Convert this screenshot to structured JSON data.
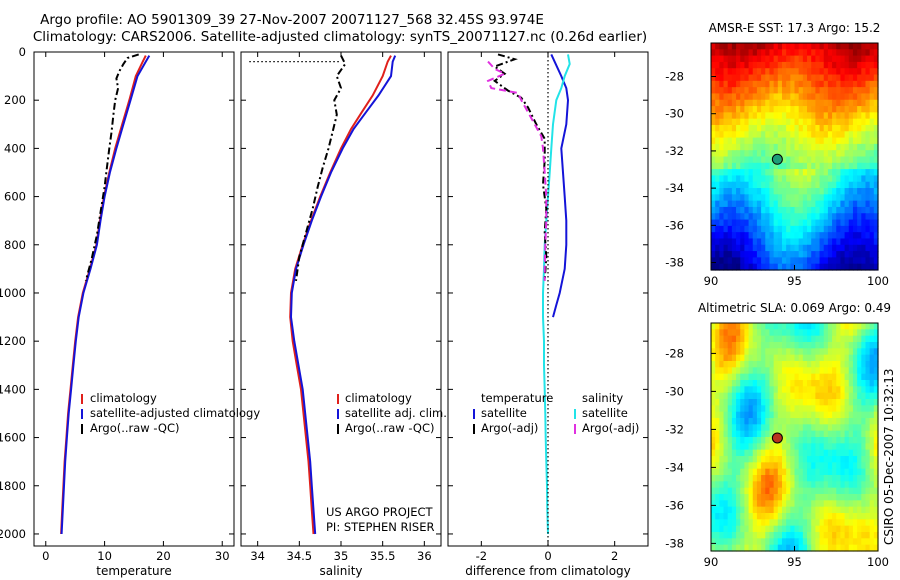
{
  "header": {
    "line1": "Argo profile: AO 5901309_39 27-Nov-2007 20071127_568 32.45S 93.974E",
    "line2": "Climatology: CARS2006. Satellite-adjusted climatology: synTS_20071127.nc (0.26d earlier)"
  },
  "footer": {
    "project": "US ARGO PROJECT",
    "pi": "PI: STEPHEN RISER",
    "stamp": "CSIRO 05-Dec-2007 10:32:13"
  },
  "colors": {
    "climatology": "#e0201b",
    "satellite": "#1414d8",
    "argo": "#000000",
    "cyan": "#22e3e8",
    "magenta": "#e030e0"
  },
  "chart_data": [
    {
      "id": "temp",
      "type": "line",
      "xlabel": "temperature",
      "ylabel": "",
      "xlim": [
        -2,
        32
      ],
      "ylim": [
        2050,
        0
      ],
      "xticks": [
        "0",
        "10",
        "20",
        "30"
      ],
      "xtick_values": [
        0,
        10,
        20,
        30
      ],
      "yticks": [
        "0",
        "200",
        "400",
        "600",
        "800",
        "1000",
        "1200",
        "1400",
        "1600",
        "1800",
        "2000"
      ],
      "ytick_values": [
        0,
        200,
        400,
        600,
        800,
        1000,
        1200,
        1400,
        1600,
        1800,
        2000
      ],
      "legend": [
        "climatology",
        "satellite-adjusted climatology",
        "Argo(..raw -QC)"
      ],
      "series": [
        {
          "name": "climatology",
          "color_key": "climatology",
          "style": "solid",
          "points": [
            [
              17.0,
              15
            ],
            [
              16.5,
              40
            ],
            [
              15.3,
              100
            ],
            [
              14.2,
              200
            ],
            [
              13.0,
              300
            ],
            [
              11.8,
              400
            ],
            [
              10.8,
              500
            ],
            [
              9.9,
              600
            ],
            [
              9.2,
              700
            ],
            [
              8.6,
              800
            ],
            [
              7.5,
              900
            ],
            [
              6.3,
              1000
            ],
            [
              5.5,
              1100
            ],
            [
              5.0,
              1200
            ],
            [
              4.6,
              1300
            ],
            [
              4.2,
              1400
            ],
            [
              3.8,
              1500
            ],
            [
              3.5,
              1600
            ],
            [
              3.2,
              1700
            ],
            [
              3.0,
              1800
            ],
            [
              2.8,
              1900
            ],
            [
              2.6,
              2000
            ]
          ]
        },
        {
          "name": "satellite",
          "color_key": "satellite",
          "style": "solid",
          "points": [
            [
              17.6,
              15
            ],
            [
              17.0,
              40
            ],
            [
              15.6,
              100
            ],
            [
              14.4,
              200
            ],
            [
              13.2,
              300
            ],
            [
              12.0,
              400
            ],
            [
              10.9,
              500
            ],
            [
              10.0,
              600
            ],
            [
              9.3,
              700
            ],
            [
              8.7,
              800
            ],
            [
              7.6,
              900
            ],
            [
              6.4,
              1000
            ],
            [
              5.6,
              1100
            ],
            [
              5.1,
              1200
            ],
            [
              4.7,
              1300
            ],
            [
              4.3,
              1400
            ],
            [
              3.9,
              1500
            ],
            [
              3.6,
              1600
            ],
            [
              3.3,
              1700
            ],
            [
              3.1,
              1800
            ],
            [
              2.9,
              1900
            ],
            [
              2.7,
              2000
            ]
          ]
        },
        {
          "name": "argo",
          "color_key": "argo",
          "style": "dashdot",
          "points": [
            [
              15.8,
              10
            ],
            [
              13.9,
              25
            ],
            [
              13.2,
              50
            ],
            [
              12.5,
              80
            ],
            [
              12.0,
              110
            ],
            [
              12.3,
              150
            ],
            [
              11.8,
              200
            ],
            [
              11.5,
              260
            ],
            [
              11.2,
              330
            ],
            [
              10.8,
              400
            ],
            [
              10.4,
              480
            ],
            [
              10.0,
              560
            ],
            [
              9.4,
              650
            ],
            [
              8.7,
              760
            ],
            [
              7.8,
              860
            ],
            [
              6.8,
              950
            ]
          ]
        }
      ]
    },
    {
      "id": "sal",
      "type": "line",
      "xlabel": "salinity",
      "ylabel": "",
      "xlim": [
        33.8,
        36.2
      ],
      "ylim": [
        2050,
        0
      ],
      "xticks": [
        "34",
        "34.5",
        "35",
        "35.5",
        "36"
      ],
      "xtick_values": [
        34,
        34.5,
        35,
        35.5,
        36
      ],
      "legend": [
        "climatology",
        "satellite adj. clim.",
        "Argo(..raw -QC)"
      ],
      "series": [
        {
          "name": "climatology",
          "color_key": "climatology",
          "style": "solid",
          "points": [
            [
              35.6,
              15
            ],
            [
              35.56,
              40
            ],
            [
              35.5,
              100
            ],
            [
              35.38,
              180
            ],
            [
              35.25,
              250
            ],
            [
              35.12,
              320
            ],
            [
              35.0,
              400
            ],
            [
              34.87,
              500
            ],
            [
              34.75,
              600
            ],
            [
              34.64,
              700
            ],
            [
              34.54,
              800
            ],
            [
              34.45,
              900
            ],
            [
              34.4,
              1000
            ],
            [
              34.39,
              1100
            ],
            [
              34.42,
              1200
            ],
            [
              34.47,
              1300
            ],
            [
              34.52,
              1400
            ],
            [
              34.55,
              1500
            ],
            [
              34.58,
              1600
            ],
            [
              34.61,
              1700
            ],
            [
              34.63,
              1800
            ],
            [
              34.65,
              1900
            ],
            [
              34.67,
              2000
            ]
          ]
        },
        {
          "name": "satellite",
          "color_key": "satellite",
          "style": "solid",
          "points": [
            [
              35.65,
              15
            ],
            [
              35.62,
              40
            ],
            [
              35.6,
              100
            ],
            [
              35.45,
              180
            ],
            [
              35.3,
              250
            ],
            [
              35.15,
              320
            ],
            [
              35.02,
              400
            ],
            [
              34.88,
              500
            ],
            [
              34.76,
              600
            ],
            [
              34.65,
              700
            ],
            [
              34.55,
              800
            ],
            [
              34.46,
              900
            ],
            [
              34.41,
              1000
            ],
            [
              34.4,
              1100
            ],
            [
              34.44,
              1200
            ],
            [
              34.49,
              1300
            ],
            [
              34.54,
              1400
            ],
            [
              34.57,
              1500
            ],
            [
              34.6,
              1600
            ],
            [
              34.63,
              1700
            ],
            [
              34.65,
              1800
            ],
            [
              34.67,
              1900
            ],
            [
              34.69,
              2000
            ]
          ]
        },
        {
          "name": "argo",
          "color_key": "argo",
          "style": "dashdot",
          "points": [
            [
              35.0,
              15
            ],
            [
              35.05,
              50
            ],
            [
              34.95,
              100
            ],
            [
              35.0,
              150
            ],
            [
              34.92,
              200
            ],
            [
              34.95,
              260
            ],
            [
              34.9,
              330
            ],
            [
              34.85,
              400
            ],
            [
              34.78,
              480
            ],
            [
              34.72,
              560
            ],
            [
              34.66,
              650
            ],
            [
              34.58,
              750
            ],
            [
              34.5,
              850
            ],
            [
              34.46,
              950
            ]
          ]
        },
        {
          "name": "argo-surface",
          "color_key": "argo",
          "style": "dotted",
          "points": [
            [
              33.9,
              40
            ],
            [
              35.0,
              40
            ]
          ]
        }
      ]
    },
    {
      "id": "diff",
      "type": "line",
      "xlabel": "difference from climatology",
      "ylabel": "",
      "xlim": [
        -3,
        3
      ],
      "ylim": [
        2050,
        0
      ],
      "xticks": [
        "-2",
        "0",
        "2"
      ],
      "xtick_values": [
        -2,
        0,
        2
      ],
      "legend_left_title": "temperature",
      "legend_right_title": "salinity",
      "legend_left": [
        "satellite",
        "Argo(-adj)"
      ],
      "legend_right": [
        "satellite",
        "Argo(-adj)"
      ],
      "series": [
        {
          "name": "temp-satellite",
          "color_key": "satellite",
          "style": "solid",
          "points": [
            [
              0.1,
              10
            ],
            [
              0.4,
              100
            ],
            [
              0.55,
              150
            ],
            [
              0.6,
              200
            ],
            [
              0.55,
              300
            ],
            [
              0.4,
              400
            ],
            [
              0.45,
              500
            ],
            [
              0.5,
              600
            ],
            [
              0.55,
              700
            ],
            [
              0.55,
              800
            ],
            [
              0.5,
              900
            ],
            [
              0.35,
              1000
            ],
            [
              0.25,
              1050
            ],
            [
              0.15,
              1100
            ]
          ]
        },
        {
          "name": "sal-satellite",
          "color_key": "cyan",
          "style": "solid",
          "points": [
            [
              0.6,
              10
            ],
            [
              0.65,
              50
            ],
            [
              0.5,
              100
            ],
            [
              0.4,
              150
            ],
            [
              0.25,
              200
            ],
            [
              0.15,
              300
            ],
            [
              0.1,
              400
            ],
            [
              0.05,
              500
            ],
            [
              0.0,
              600
            ],
            [
              -0.05,
              700
            ],
            [
              -0.1,
              800
            ],
            [
              -0.12,
              900
            ],
            [
              -0.15,
              1000
            ],
            [
              -0.15,
              1100
            ],
            [
              -0.12,
              1200
            ],
            [
              -0.12,
              1300
            ],
            [
              -0.1,
              1400
            ],
            [
              -0.08,
              1500
            ],
            [
              -0.07,
              1600
            ],
            [
              -0.05,
              1700
            ],
            [
              -0.03,
              1800
            ],
            [
              -0.02,
              1900
            ],
            [
              0.0,
              2000
            ]
          ]
        },
        {
          "name": "temp-argo",
          "color_key": "argo",
          "style": "dashdot",
          "points": [
            [
              -1.5,
              10
            ],
            [
              -1.0,
              30
            ],
            [
              -1.6,
              60
            ],
            [
              -1.3,
              90
            ],
            [
              -1.6,
              120
            ],
            [
              -1.2,
              160
            ],
            [
              -0.8,
              190
            ],
            [
              -0.6,
              230
            ],
            [
              -0.35,
              300
            ],
            [
              -0.1,
              360
            ],
            [
              -0.1,
              450
            ],
            [
              -0.15,
              550
            ],
            [
              -0.05,
              650
            ],
            [
              -0.1,
              750
            ],
            [
              -0.05,
              850
            ],
            [
              -0.1,
              950
            ]
          ]
        },
        {
          "name": "sal-argo",
          "color_key": "magenta",
          "style": "dashed",
          "points": [
            [
              -1.8,
              40
            ],
            [
              -1.6,
              70
            ],
            [
              -1.3,
              90
            ],
            [
              -1.8,
              120
            ],
            [
              -1.7,
              150
            ],
            [
              -0.9,
              170
            ],
            [
              -0.8,
              200
            ],
            [
              -0.6,
              250
            ],
            [
              -0.4,
              300
            ],
            [
              -0.2,
              350
            ],
            [
              -0.15,
              400
            ],
            [
              -0.1,
              500
            ],
            [
              -0.05,
              600
            ],
            [
              -0.05,
              700
            ],
            [
              -0.08,
              800
            ],
            [
              -0.1,
              900
            ],
            [
              -0.1,
              950
            ]
          ]
        },
        {
          "name": "zero-line",
          "color_key": "argo",
          "style": "dotted",
          "points": [
            [
              0,
              0
            ],
            [
              0,
              2050
            ]
          ]
        }
      ]
    },
    {
      "id": "sst_map",
      "type": "heatmap",
      "title": "AMSR-E SST: 17.3 Argo: 15.2",
      "xlim": [
        90,
        100
      ],
      "ylim": [
        -38.4,
        -26.2
      ],
      "xticks": [
        "90",
        "95",
        "100"
      ],
      "xtick_values": [
        90,
        95,
        100
      ],
      "yticks": [
        "-28",
        "-30",
        "-32",
        "-34",
        "-36",
        "-38"
      ],
      "ytick_values": [
        -28,
        -30,
        -32,
        -34,
        -36,
        -38
      ],
      "marker": {
        "lon": 93.974,
        "lat": -32.45,
        "color": "#1d9e78"
      }
    },
    {
      "id": "sla_map",
      "type": "heatmap",
      "title": "Altimetric SLA: 0.069 Argo: 0.49",
      "xlim": [
        90,
        100
      ],
      "ylim": [
        -38.4,
        -26.4
      ],
      "xticks": [
        "90",
        "95",
        "100"
      ],
      "xtick_values": [
        90,
        95,
        100
      ],
      "yticks": [
        "-28",
        "-30",
        "-32",
        "-34",
        "-36",
        "-38"
      ],
      "ytick_values": [
        -28,
        -30,
        -32,
        -34,
        -36,
        -38
      ],
      "marker": {
        "lon": 93.974,
        "lat": -32.45,
        "color": "#b8331f"
      }
    }
  ]
}
